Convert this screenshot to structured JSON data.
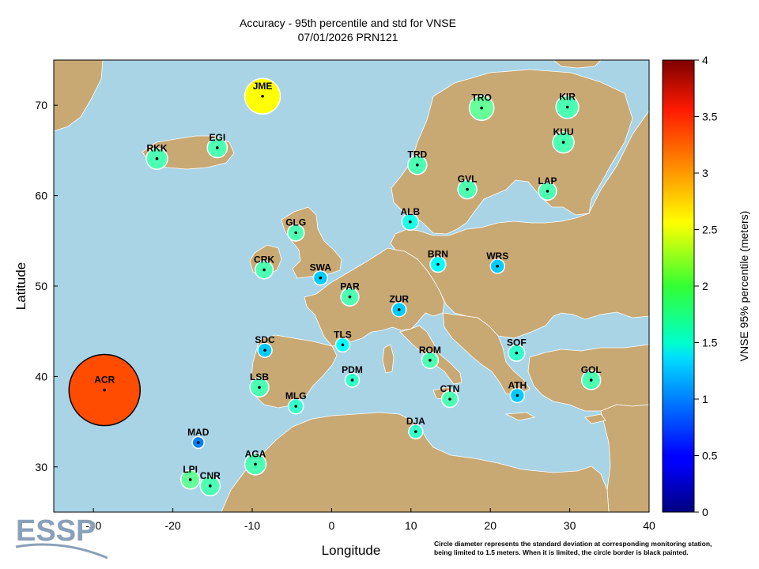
{
  "title": {
    "line1": "Accuracy - 95th percentile and std for VNSE",
    "line2": "07/01/2026 PRN121"
  },
  "axes": {
    "xlabel": "Longitude",
    "ylabel": "Latitude",
    "colorbar_label": "VNSE 95% percentile (meters)"
  },
  "footnote": {
    "line1": "Circle diameter represents the standard deviation at corresponding monitoring station,",
    "line2": "being limited to 1.5 meters. When it is limited, the circle border is black painted."
  },
  "logo": {
    "text": "ESSP"
  },
  "colors": {
    "sea": "#a8d4e6",
    "land": "#c8a873"
  },
  "chart_data": {
    "type": "scatter",
    "title": "Accuracy - 95th percentile and std for VNSE",
    "subtitle": "07/01/2026 PRN121",
    "xlabel": "Longitude",
    "ylabel": "Latitude",
    "xlim": [
      -35,
      40
    ],
    "ylim": [
      25,
      75
    ],
    "x_ticks": [
      -30,
      -20,
      -10,
      0,
      10,
      20,
      30,
      40
    ],
    "y_ticks": [
      30,
      40,
      50,
      60,
      70
    ],
    "colorbar": {
      "label": "VNSE 95% percentile (meters)",
      "min": 0,
      "max": 4,
      "ticks": [
        0,
        0.5,
        1,
        1.5,
        2,
        2.5,
        3,
        3.5,
        4
      ]
    },
    "grid": false,
    "stations": [
      {
        "name": "JME",
        "lon": -8.7,
        "lat": 71.0,
        "value": 2.5,
        "std": 0.75,
        "limited": false
      },
      {
        "name": "TRO",
        "lon": 18.9,
        "lat": 69.7,
        "value": 1.9,
        "std": 0.52,
        "limited": false
      },
      {
        "name": "KIR",
        "lon": 29.7,
        "lat": 69.8,
        "value": 1.8,
        "std": 0.48,
        "limited": false
      },
      {
        "name": "KUU",
        "lon": 29.2,
        "lat": 65.9,
        "value": 1.8,
        "std": 0.45,
        "limited": false
      },
      {
        "name": "RKK",
        "lon": -22.0,
        "lat": 64.1,
        "value": 1.8,
        "std": 0.45,
        "limited": false
      },
      {
        "name": "EGI",
        "lon": -14.4,
        "lat": 65.3,
        "value": 1.8,
        "std": 0.42,
        "limited": false
      },
      {
        "name": "TRD",
        "lon": 10.8,
        "lat": 63.4,
        "value": 1.8,
        "std": 0.4,
        "limited": false
      },
      {
        "name": "GVL",
        "lon": 17.1,
        "lat": 60.7,
        "value": 1.8,
        "std": 0.4,
        "limited": false
      },
      {
        "name": "LAP",
        "lon": 27.2,
        "lat": 60.5,
        "value": 1.8,
        "std": 0.38,
        "limited": false
      },
      {
        "name": "ALB",
        "lon": 9.9,
        "lat": 57.1,
        "value": 1.6,
        "std": 0.35,
        "limited": false
      },
      {
        "name": "GLG",
        "lon": -4.5,
        "lat": 55.9,
        "value": 1.8,
        "std": 0.35,
        "limited": false
      },
      {
        "name": "CRK",
        "lon": -8.5,
        "lat": 51.8,
        "value": 1.8,
        "std": 0.38,
        "limited": false
      },
      {
        "name": "SWA",
        "lon": -1.4,
        "lat": 50.9,
        "value": 1.3,
        "std": 0.3,
        "limited": false
      },
      {
        "name": "BRN",
        "lon": 13.4,
        "lat": 52.4,
        "value": 1.5,
        "std": 0.33,
        "limited": false
      },
      {
        "name": "WRS",
        "lon": 20.9,
        "lat": 52.2,
        "value": 1.3,
        "std": 0.3,
        "limited": false
      },
      {
        "name": "PAR",
        "lon": 2.3,
        "lat": 48.8,
        "value": 1.8,
        "std": 0.38,
        "limited": false
      },
      {
        "name": "ZUR",
        "lon": 8.5,
        "lat": 47.4,
        "value": 1.3,
        "std": 0.3,
        "limited": false
      },
      {
        "name": "TLS",
        "lon": 1.4,
        "lat": 43.5,
        "value": 1.5,
        "std": 0.3,
        "limited": false
      },
      {
        "name": "SDC",
        "lon": -8.4,
        "lat": 42.9,
        "value": 1.3,
        "std": 0.3,
        "limited": false
      },
      {
        "name": "ROM",
        "lon": 12.4,
        "lat": 41.8,
        "value": 1.8,
        "std": 0.35,
        "limited": false
      },
      {
        "name": "SOF",
        "lon": 23.3,
        "lat": 42.6,
        "value": 1.7,
        "std": 0.35,
        "limited": false
      },
      {
        "name": "ACR",
        "lon": -28.6,
        "lat": 38.5,
        "value": 3.2,
        "std": 1.5,
        "limited": true
      },
      {
        "name": "LSB",
        "lon": -9.1,
        "lat": 38.8,
        "value": 1.8,
        "std": 0.4,
        "limited": false
      },
      {
        "name": "PDM",
        "lon": 2.6,
        "lat": 39.6,
        "value": 1.7,
        "std": 0.3,
        "limited": false
      },
      {
        "name": "GOL",
        "lon": 32.7,
        "lat": 39.6,
        "value": 1.8,
        "std": 0.4,
        "limited": false
      },
      {
        "name": "MLG",
        "lon": -4.5,
        "lat": 36.7,
        "value": 1.7,
        "std": 0.32,
        "limited": false
      },
      {
        "name": "CTN",
        "lon": 14.9,
        "lat": 37.5,
        "value": 1.8,
        "std": 0.35,
        "limited": false
      },
      {
        "name": "ATH",
        "lon": 23.4,
        "lat": 37.9,
        "value": 1.3,
        "std": 0.3,
        "limited": false
      },
      {
        "name": "DJA",
        "lon": 10.6,
        "lat": 33.9,
        "value": 1.7,
        "std": 0.3,
        "limited": false
      },
      {
        "name": "MAD",
        "lon": -16.8,
        "lat": 32.7,
        "value": 1.0,
        "std": 0.25,
        "limited": false
      },
      {
        "name": "AGA",
        "lon": -9.6,
        "lat": 30.3,
        "value": 1.8,
        "std": 0.45,
        "limited": false
      },
      {
        "name": "LPI",
        "lon": -17.8,
        "lat": 28.6,
        "value": 1.9,
        "std": 0.4,
        "limited": false
      },
      {
        "name": "CNR",
        "lon": -15.3,
        "lat": 27.9,
        "value": 1.8,
        "std": 0.42,
        "limited": false
      }
    ]
  }
}
